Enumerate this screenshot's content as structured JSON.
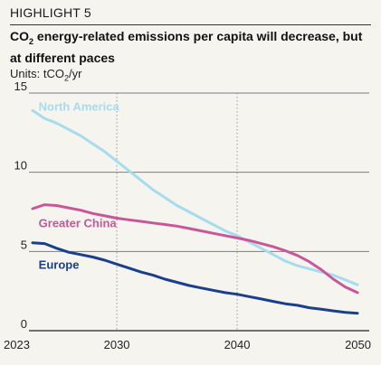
{
  "header": {
    "highlight": "HIGHLIGHT 5",
    "title_prefix": "CO",
    "title_sub": "2",
    "title_rest": " energy-related emissions per capita will decrease, but at different paces",
    "units_prefix": "Units: tCO",
    "units_sub": "2",
    "units_suffix": "/yr"
  },
  "chart_data": {
    "type": "line",
    "title": "CO₂ energy-related emissions per capita will decrease, but at different paces",
    "ylabel": "Units: tCO₂/yr",
    "xlabel": "",
    "xlim": [
      2023,
      2050
    ],
    "ylim": [
      0,
      15
    ],
    "xticks": [
      2023,
      2030,
      2040,
      2050
    ],
    "yticks": [
      0,
      5,
      10,
      15
    ],
    "grid": "horizontal at y ticks; dotted vertical at 2030 and 2040",
    "series": [
      {
        "name": "North America",
        "color": "#a6dcec",
        "x": [
          2023,
          2024,
          2025,
          2026,
          2027,
          2028,
          2029,
          2030,
          2031,
          2032,
          2033,
          2034,
          2035,
          2036,
          2037,
          2038,
          2039,
          2040,
          2041,
          2042,
          2043,
          2044,
          2045,
          2046,
          2047,
          2048,
          2049,
          2050
        ],
        "values": [
          13.9,
          13.4,
          13.1,
          12.7,
          12.3,
          11.8,
          11.3,
          10.7,
          10.1,
          9.5,
          8.9,
          8.4,
          7.9,
          7.5,
          7.1,
          6.7,
          6.3,
          6.0,
          5.6,
          5.2,
          4.8,
          4.4,
          4.1,
          3.9,
          3.7,
          3.5,
          3.2,
          2.9
        ]
      },
      {
        "name": "Greater China",
        "color": "#c8579a",
        "x": [
          2023,
          2024,
          2025,
          2026,
          2027,
          2028,
          2029,
          2030,
          2031,
          2032,
          2033,
          2034,
          2035,
          2036,
          2037,
          2038,
          2039,
          2040,
          2041,
          2042,
          2043,
          2044,
          2045,
          2046,
          2047,
          2048,
          2049,
          2050
        ],
        "values": [
          7.7,
          7.95,
          7.9,
          7.75,
          7.6,
          7.4,
          7.25,
          7.1,
          7.0,
          6.9,
          6.8,
          6.7,
          6.6,
          6.45,
          6.3,
          6.15,
          6.0,
          5.85,
          5.7,
          5.5,
          5.3,
          5.05,
          4.75,
          4.35,
          3.85,
          3.25,
          2.75,
          2.4
        ]
      },
      {
        "name": "Europe",
        "color": "#1a3f8c",
        "x": [
          2023,
          2024,
          2025,
          2026,
          2027,
          2028,
          2029,
          2030,
          2031,
          2032,
          2033,
          2034,
          2035,
          2036,
          2037,
          2038,
          2039,
          2040,
          2041,
          2042,
          2043,
          2044,
          2045,
          2046,
          2047,
          2048,
          2049,
          2050
        ],
        "values": [
          5.55,
          5.5,
          5.2,
          4.95,
          4.8,
          4.65,
          4.45,
          4.2,
          3.95,
          3.7,
          3.5,
          3.25,
          3.05,
          2.85,
          2.7,
          2.55,
          2.4,
          2.3,
          2.15,
          2.0,
          1.85,
          1.7,
          1.6,
          1.45,
          1.35,
          1.25,
          1.15,
          1.1
        ]
      }
    ]
  }
}
